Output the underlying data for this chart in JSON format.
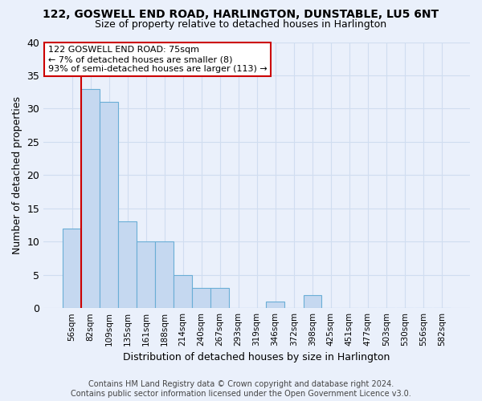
{
  "title1": "122, GOSWELL END ROAD, HARLINGTON, DUNSTABLE, LU5 6NT",
  "title2": "Size of property relative to detached houses in Harlington",
  "xlabel": "Distribution of detached houses by size in Harlington",
  "ylabel": "Number of detached properties",
  "bin_labels": [
    "56sqm",
    "82sqm",
    "109sqm",
    "135sqm",
    "161sqm",
    "188sqm",
    "214sqm",
    "240sqm",
    "267sqm",
    "293sqm",
    "319sqm",
    "346sqm",
    "372sqm",
    "398sqm",
    "425sqm",
    "451sqm",
    "477sqm",
    "503sqm",
    "530sqm",
    "556sqm",
    "582sqm"
  ],
  "bin_values": [
    12,
    33,
    31,
    13,
    10,
    10,
    5,
    3,
    3,
    0,
    0,
    1,
    0,
    2,
    0,
    0,
    0,
    0,
    0,
    0,
    0
  ],
  "bar_color": "#c5d8f0",
  "bar_edge_color": "#6aaed6",
  "property_line_color": "#cc0000",
  "annotation_text": "122 GOSWELL END ROAD: 75sqm\n← 7% of detached houses are smaller (8)\n93% of semi-detached houses are larger (113) →",
  "annotation_box_color": "#ffffff",
  "annotation_box_edge": "#cc0000",
  "footer_text": "Contains HM Land Registry data © Crown copyright and database right 2024.\nContains public sector information licensed under the Open Government Licence v3.0.",
  "ylim": [
    0,
    40
  ],
  "yticks": [
    0,
    5,
    10,
    15,
    20,
    25,
    30,
    35,
    40
  ],
  "bg_color": "#eaf0fb",
  "grid_color": "#d0ddf0"
}
